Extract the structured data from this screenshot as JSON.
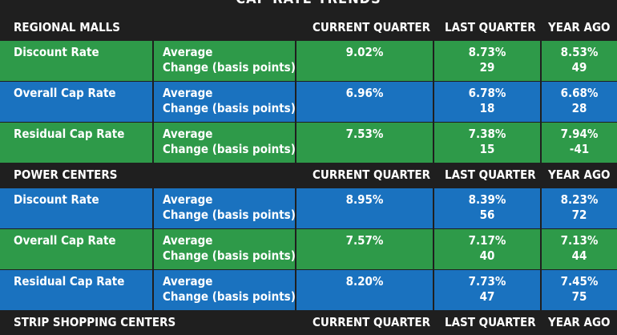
{
  "title": "CAP RATE TRENDS",
  "columns": [
    "CURRENT QUARTER",
    "LAST QUARTER",
    "YEAR AGO"
  ],
  "sub_labels": [
    "Average",
    "Change (basis points)"
  ],
  "sections": [
    {
      "name": "REGIONAL MALLS",
      "rows": [
        {
          "label": "Discount Rate",
          "current": "9.02%",
          "last_avg": "8.73%",
          "last_chg": "29",
          "year_avg": "8.53%",
          "year_chg": "49"
        },
        {
          "label": "Overall Cap Rate",
          "current": "6.96%",
          "last_avg": "6.78%",
          "last_chg": "18",
          "year_avg": "6.68%",
          "year_chg": "28"
        },
        {
          "label": "Residual Cap Rate",
          "current": "7.53%",
          "last_avg": "7.38%",
          "last_chg": "15",
          "year_avg": "7.94%",
          "year_chg": "-41"
        }
      ]
    },
    {
      "name": "POWER CENTERS",
      "rows": [
        {
          "label": "Discount Rate",
          "current": "8.95%",
          "last_avg": "8.39%",
          "last_chg": "56",
          "year_avg": "8.23%",
          "year_chg": "72"
        },
        {
          "label": "Overall Cap Rate",
          "current": "7.57%",
          "last_avg": "7.17%",
          "last_chg": "40",
          "year_avg": "7.13%",
          "year_chg": "44"
        },
        {
          "label": "Residual Cap Rate",
          "current": "8.20%",
          "last_avg": "7.73%",
          "last_chg": "47",
          "year_avg": "7.45%",
          "year_chg": "75"
        }
      ]
    },
    {
      "name": "STRIP SHOPPING CENTERS",
      "rows": []
    }
  ],
  "colors": {
    "green": "#2e9a49",
    "blue": "#1a72bf",
    "header": "#1f1f1f"
  }
}
